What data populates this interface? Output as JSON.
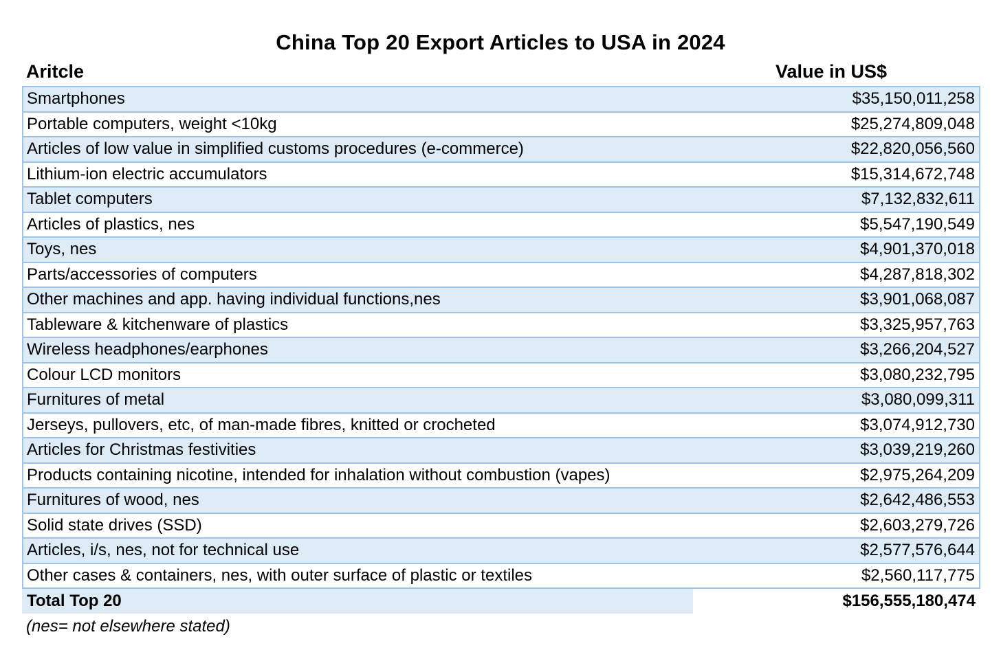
{
  "title": "China Top 20 Export Articles to USA in 2024",
  "headers": {
    "article": "Aritcle",
    "value": "Value in US$"
  },
  "rows": [
    {
      "article": "Smartphones",
      "value": "$35,150,011,258"
    },
    {
      "article": "Portable computers, weight <10kg",
      "value": "$25,274,809,048"
    },
    {
      "article": "Articles of low value in simplified customs procedures (e-commerce)",
      "value": "$22,820,056,560"
    },
    {
      "article": "Lithium-ion electric accumulators",
      "value": "$15,314,672,748"
    },
    {
      "article": "Tablet computers",
      "value": "$7,132,832,611"
    },
    {
      "article": "Articles of plastics, nes",
      "value": "$5,547,190,549"
    },
    {
      "article": "Toys, nes",
      "value": "$4,901,370,018"
    },
    {
      "article": "Parts/accessories of computers",
      "value": "$4,287,818,302"
    },
    {
      "article": "Other machines and app. having individual functions,nes",
      "value": "$3,901,068,087"
    },
    {
      "article": "Tableware & kitchenware of plastics",
      "value": "$3,325,957,763"
    },
    {
      "article": "Wireless headphones/earphones",
      "value": "$3,266,204,527"
    },
    {
      "article": "Colour LCD monitors",
      "value": "$3,080,232,795"
    },
    {
      "article": "Furnitures of metal",
      "value": "$3,080,099,311"
    },
    {
      "article": "Jerseys, pullovers, etc, of man-made fibres, knitted or crocheted",
      "value": "$3,074,912,730"
    },
    {
      "article": "Articles for Christmas festivities",
      "value": "$3,039,219,260"
    },
    {
      "article": "Products containing nicotine, intended for inhalation without combustion (vapes)",
      "value": "$2,975,264,209"
    },
    {
      "article": "Furnitures of wood, nes",
      "value": "$2,642,486,553"
    },
    {
      "article": "Solid state drives (SSD)",
      "value": "$2,603,279,726"
    },
    {
      "article": "Articles, i/s, nes, not for technical use",
      "value": "$2,577,576,644"
    },
    {
      "article": "Other cases & containers, nes, with outer surface of plastic or textiles",
      "value": "$2,560,117,775"
    }
  ],
  "total": {
    "label": "Total Top 20",
    "value": "$156,555,180,474"
  },
  "note": "(nes= not elsewhere stated)",
  "colors": {
    "stripe": "#ddebf7",
    "border": "#9dc3e6"
  }
}
